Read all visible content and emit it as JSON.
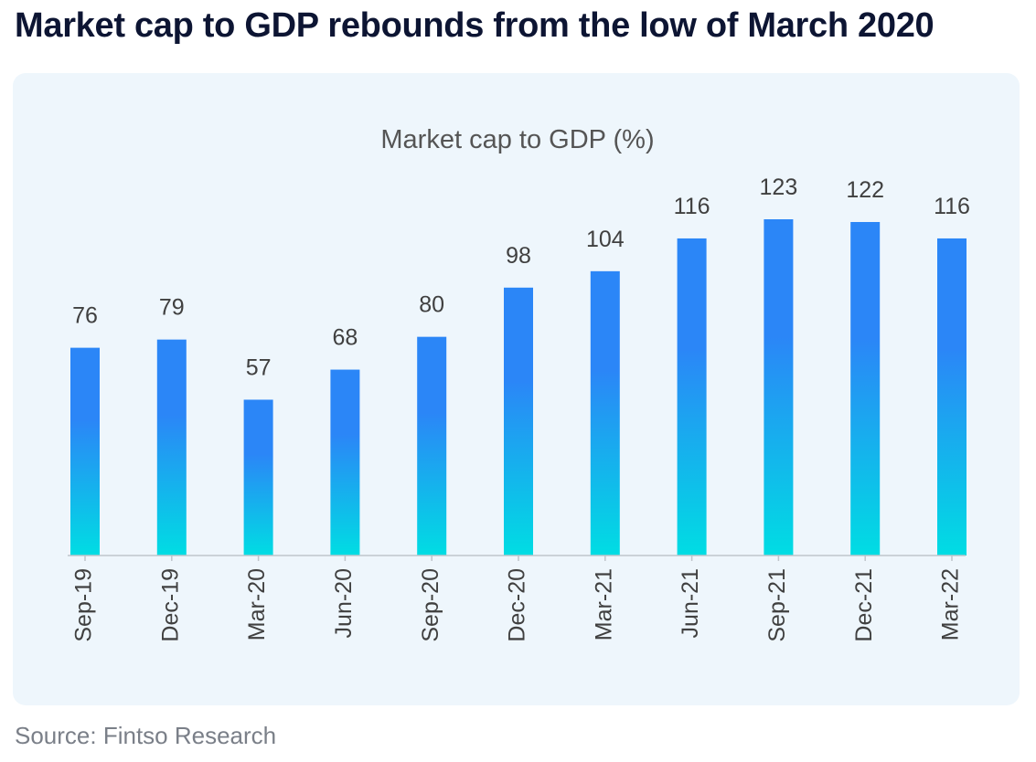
{
  "headline": "Market cap to GDP rebounds from the low of March 2020",
  "source": "Source: Fintso Research",
  "colors": {
    "bar_top": "#2b86f7",
    "bar_bottom": "#00dde3",
    "label_text": "#404040",
    "chart_title": "#555555",
    "axis": "#bfc5cb",
    "panel_bg": "#eef6fc",
    "headline": "#0d1533"
  },
  "chart_data": {
    "type": "bar",
    "title": "Market cap to GDP (%)",
    "xlabel": "",
    "ylabel": "",
    "categories": [
      "Sep-19",
      "Dec-19",
      "Mar-20",
      "Jun-20",
      "Sep-20",
      "Dec-20",
      "Mar-21",
      "Jun-21",
      "Sep-21",
      "Dec-21",
      "Mar-22"
    ],
    "values": [
      76,
      79,
      57,
      68,
      80,
      98,
      104,
      116,
      123,
      122,
      116
    ],
    "ylim": [
      0,
      123
    ],
    "grid": false,
    "legend": "none",
    "data_labels": true
  }
}
